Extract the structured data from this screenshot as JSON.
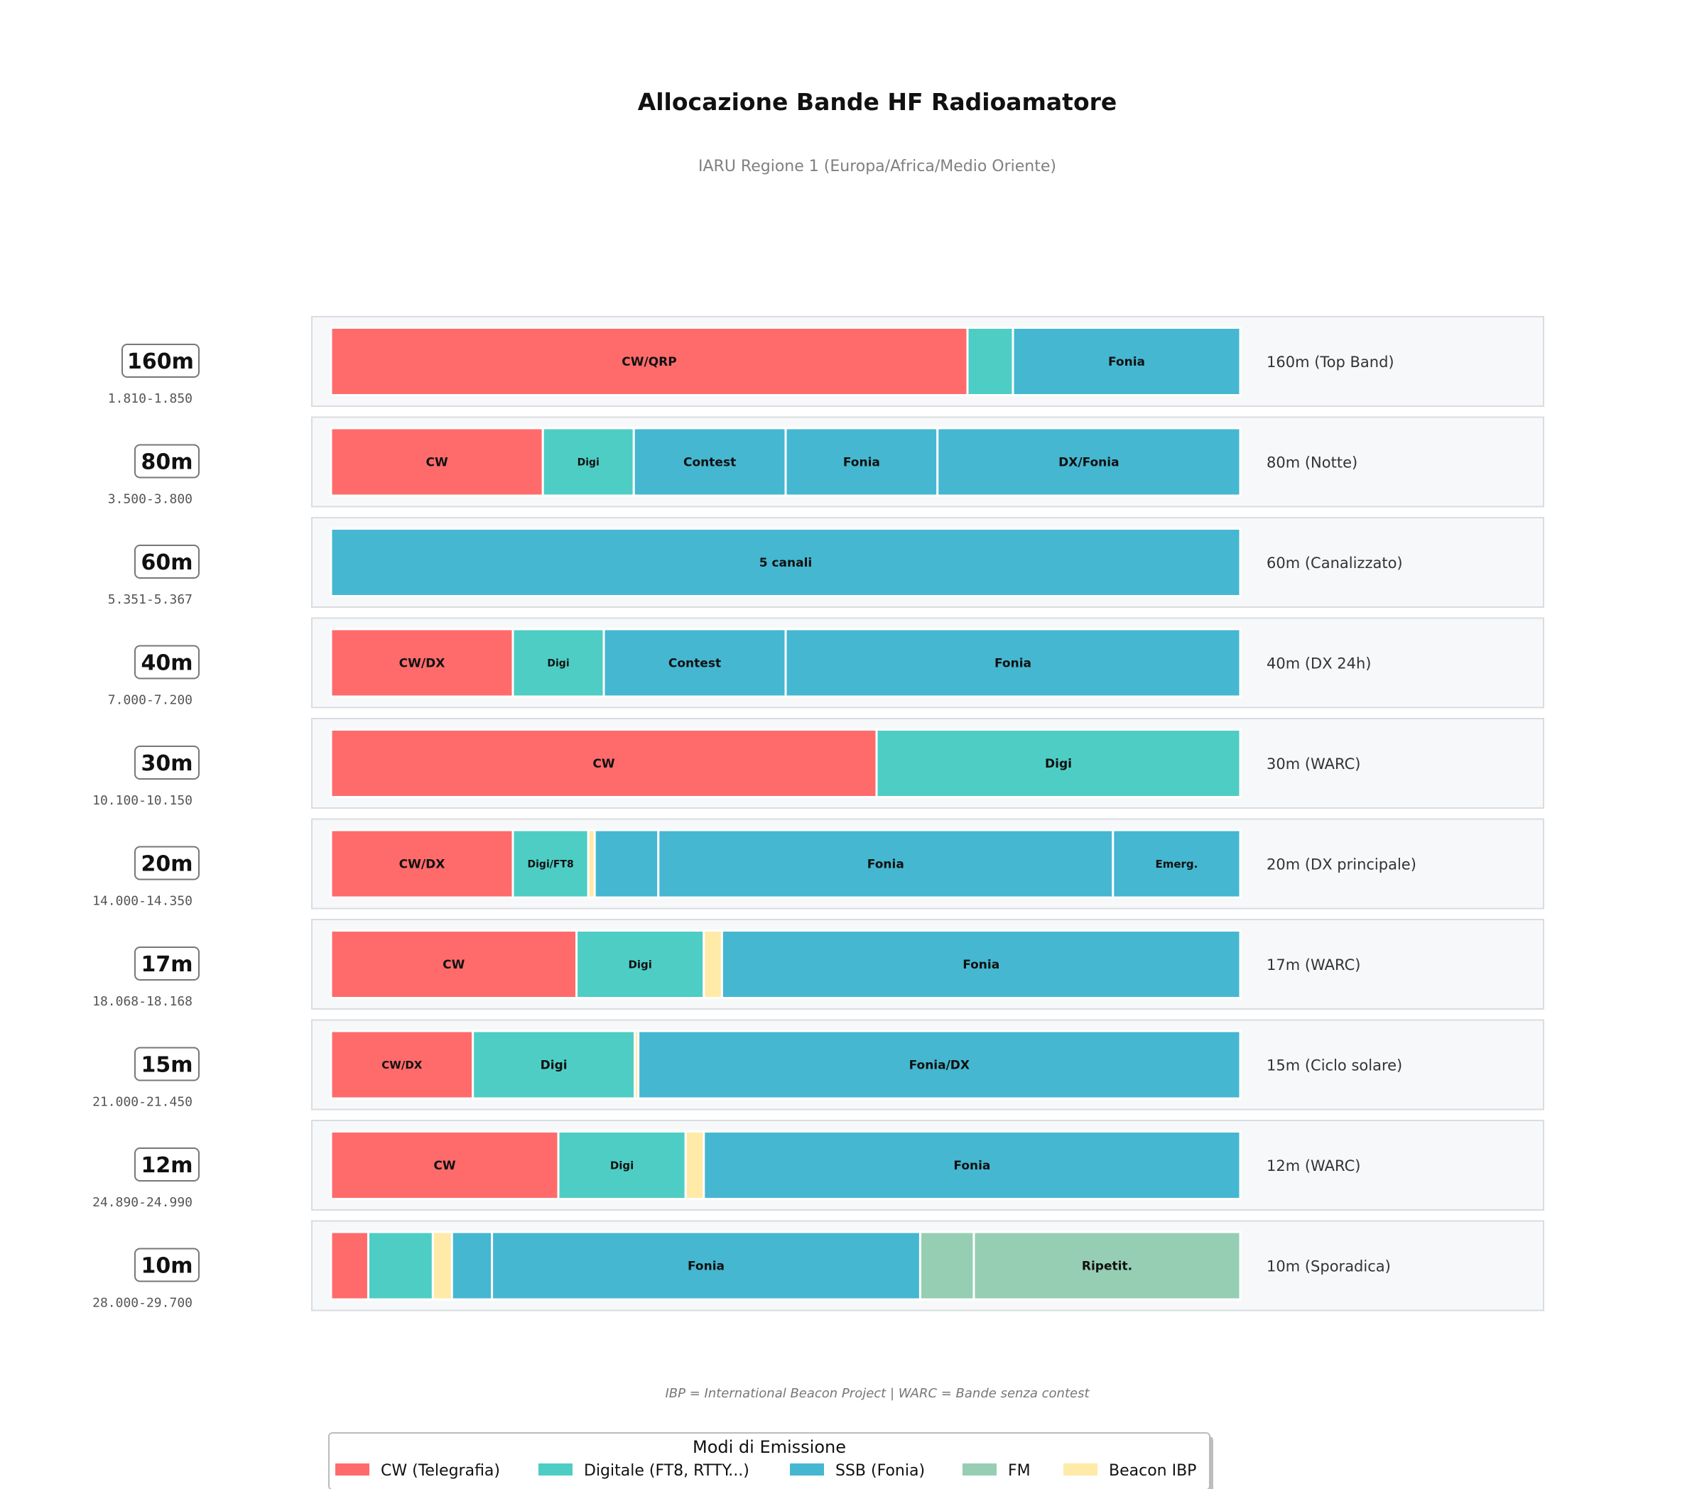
{
  "chart_data": {
    "type": "bar",
    "orientation": "horizontal-stacked",
    "title": "Allocazione Bande HF Radioamatore",
    "subtitle": "IARU Regione 1 (Europa/Africa/Medio Oriente)",
    "xlim": [
      0,
      100
    ],
    "value_unit": "percent of band width",
    "grid": false,
    "legend_position": "bottom-center",
    "footnote": "IBP = International Beacon Project | WARC = Bande senza contest",
    "legend": {
      "title": "Modi di Emissione",
      "entries": [
        {
          "mode": "cw",
          "label": "CW (Telegrafia)"
        },
        {
          "mode": "digi",
          "label": "Digitale (FT8, RTTY...)"
        },
        {
          "mode": "ssb",
          "label": "SSB (Fonia)"
        },
        {
          "mode": "fm",
          "label": "FM"
        },
        {
          "mode": "beacon",
          "label": "Beacon IBP"
        }
      ]
    },
    "colors": {
      "cw": "#ff6b6b",
      "digi": "#4ecdc4",
      "ssb": "#45b7d1",
      "fm": "#96ceb4",
      "beacon": "#ffeaa7"
    },
    "bands": [
      {
        "name": "160m",
        "range": "1.810-1.850",
        "description": "160m (Top Band)",
        "segments": [
          {
            "mode": "cw",
            "value": 70,
            "label": "CW/QRP"
          },
          {
            "mode": "digi",
            "value": 5,
            "label": ""
          },
          {
            "mode": "ssb",
            "value": 25,
            "label": "Fonia"
          }
        ]
      },
      {
        "name": "80m",
        "range": "3.500-3.800",
        "description": "80m (Notte)",
        "segments": [
          {
            "mode": "cw",
            "value": 23.3,
            "label": "CW"
          },
          {
            "mode": "digi",
            "value": 10,
            "label": "Digi"
          },
          {
            "mode": "ssb",
            "value": 16.7,
            "label": "Contest"
          },
          {
            "mode": "ssb",
            "value": 16.7,
            "label": "Fonia"
          },
          {
            "mode": "ssb",
            "value": 33.3,
            "label": "DX/Fonia"
          }
        ]
      },
      {
        "name": "60m",
        "range": "5.351-5.367",
        "description": "60m (Canalizzato)",
        "segments": [
          {
            "mode": "ssb",
            "value": 100,
            "label": "5 canali"
          }
        ]
      },
      {
        "name": "40m",
        "range": "7.000-7.200",
        "description": "40m (DX 24h)",
        "segments": [
          {
            "mode": "cw",
            "value": 20,
            "label": "CW/DX"
          },
          {
            "mode": "digi",
            "value": 10,
            "label": "Digi"
          },
          {
            "mode": "ssb",
            "value": 20,
            "label": "Contest"
          },
          {
            "mode": "ssb",
            "value": 50,
            "label": "Fonia"
          }
        ]
      },
      {
        "name": "30m",
        "range": "10.100-10.150",
        "description": "30m (WARC)",
        "segments": [
          {
            "mode": "cw",
            "value": 60,
            "label": "CW"
          },
          {
            "mode": "digi",
            "value": 40,
            "label": "Digi"
          }
        ]
      },
      {
        "name": "20m",
        "range": "14.000-14.350",
        "description": "20m (DX principale)",
        "segments": [
          {
            "mode": "cw",
            "value": 20,
            "label": "CW/DX"
          },
          {
            "mode": "digi",
            "value": 8.3,
            "label": "Digi/FT8"
          },
          {
            "mode": "beacon",
            "value": 0.7,
            "label": ""
          },
          {
            "mode": "ssb",
            "value": 7,
            "label": ""
          },
          {
            "mode": "ssb",
            "value": 50,
            "label": "Fonia"
          },
          {
            "mode": "ssb",
            "value": 14,
            "label": "Emerg."
          }
        ]
      },
      {
        "name": "17m",
        "range": "18.068-18.168",
        "description": "17m (WARC)",
        "segments": [
          {
            "mode": "cw",
            "value": 27,
            "label": "CW"
          },
          {
            "mode": "digi",
            "value": 14,
            "label": "Digi"
          },
          {
            "mode": "beacon",
            "value": 2,
            "label": ""
          },
          {
            "mode": "ssb",
            "value": 57,
            "label": "Fonia"
          }
        ]
      },
      {
        "name": "15m",
        "range": "21.000-21.450",
        "description": "15m (Ciclo solare)",
        "segments": [
          {
            "mode": "cw",
            "value": 15.6,
            "label": "CW/DX"
          },
          {
            "mode": "digi",
            "value": 17.8,
            "label": "Digi"
          },
          {
            "mode": "beacon",
            "value": 0.4,
            "label": ""
          },
          {
            "mode": "ssb",
            "value": 66.2,
            "label": "Fonia/DX"
          }
        ]
      },
      {
        "name": "12m",
        "range": "24.890-24.990",
        "description": "12m (WARC)",
        "segments": [
          {
            "mode": "cw",
            "value": 25,
            "label": "CW"
          },
          {
            "mode": "digi",
            "value": 14,
            "label": "Digi"
          },
          {
            "mode": "beacon",
            "value": 2,
            "label": ""
          },
          {
            "mode": "ssb",
            "value": 59,
            "label": "Fonia"
          }
        ]
      },
      {
        "name": "10m",
        "range": "28.000-29.700",
        "description": "10m (Sporadica)",
        "segments": [
          {
            "mode": "cw",
            "value": 4.1,
            "label": ""
          },
          {
            "mode": "digi",
            "value": 7.1,
            "label": ""
          },
          {
            "mode": "beacon",
            "value": 2.1,
            "label": ""
          },
          {
            "mode": "ssb",
            "value": 4.4,
            "label": ""
          },
          {
            "mode": "ssb",
            "value": 47.1,
            "label": "Fonia"
          },
          {
            "mode": "fm",
            "value": 5.9,
            "label": ""
          },
          {
            "mode": "fm",
            "value": 29.3,
            "label": "Ripetit."
          }
        ]
      }
    ]
  }
}
